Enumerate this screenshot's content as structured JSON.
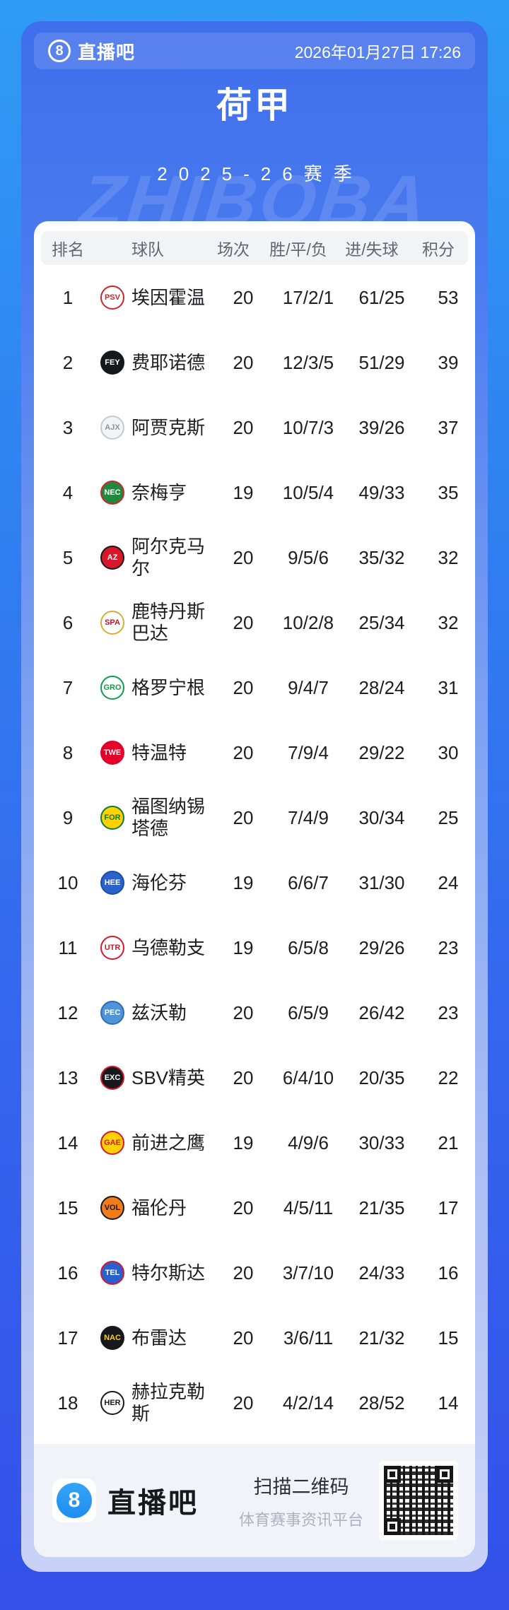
{
  "header": {
    "brand_number": "8",
    "brand_name": "直播吧",
    "datetime": "2026年01月27日 17:26"
  },
  "title": "荷甲",
  "season": "2025-26赛季",
  "watermark": "ZHIBOBA",
  "table": {
    "columns": [
      "排名",
      "球队",
      "场次",
      "胜/平/负",
      "进/失球",
      "积分"
    ],
    "rows": [
      {
        "rank": "1",
        "team": "埃因霍温",
        "played": "20",
        "record": "17/2/1",
        "goals": "61/25",
        "points": "53",
        "logo": {
          "initials": "PSV",
          "bg": "#ffffff",
          "fg": "#d2232a",
          "border": "#d2232a"
        }
      },
      {
        "rank": "2",
        "team": "费耶诺德",
        "played": "20",
        "record": "12/3/5",
        "goals": "51/29",
        "points": "39",
        "logo": {
          "initials": "FEY",
          "bg": "#16181d",
          "fg": "#ffffff",
          "border": "#16181d"
        }
      },
      {
        "rank": "3",
        "team": "阿贾克斯",
        "played": "20",
        "record": "10/7/3",
        "goals": "39/26",
        "points": "37",
        "logo": {
          "initials": "AJX",
          "bg": "#f2f3f5",
          "fg": "#8d939e",
          "border": "#c4c9d2"
        }
      },
      {
        "rank": "4",
        "team": "奈梅亨",
        "played": "19",
        "record": "10/5/4",
        "goals": "49/33",
        "points": "35",
        "logo": {
          "initials": "NEC",
          "bg": "#1f8a3d",
          "fg": "#ffffff",
          "border": "#d2232a"
        }
      },
      {
        "rank": "5",
        "team": "阿尔克马尔",
        "played": "20",
        "record": "9/5/6",
        "goals": "35/32",
        "points": "32",
        "logo": {
          "initials": "AZ",
          "bg": "#d7182a",
          "fg": "#ffffff",
          "border": "#16181d"
        }
      },
      {
        "rank": "6",
        "team": "鹿特丹斯巴达",
        "played": "20",
        "record": "10/2/8",
        "goals": "25/34",
        "points": "32",
        "logo": {
          "initials": "SPA",
          "bg": "#ffffff",
          "fg": "#c8102e",
          "border": "#d4af37"
        }
      },
      {
        "rank": "7",
        "team": "格罗宁根",
        "played": "20",
        "record": "9/4/7",
        "goals": "28/24",
        "points": "31",
        "logo": {
          "initials": "GRO",
          "bg": "#ffffff",
          "fg": "#0f9d4a",
          "border": "#0f9d4a"
        }
      },
      {
        "rank": "8",
        "team": "特温特",
        "played": "20",
        "record": "7/9/4",
        "goals": "29/22",
        "points": "30",
        "logo": {
          "initials": "TWE",
          "bg": "#e4002b",
          "fg": "#ffffff",
          "border": "#e4002b"
        }
      },
      {
        "rank": "9",
        "team": "福图纳锡塔德",
        "played": "20",
        "record": "7/4/9",
        "goals": "30/34",
        "points": "25",
        "logo": {
          "initials": "FOR",
          "bg": "#ffd100",
          "fg": "#0f7a38",
          "border": "#0f7a38"
        }
      },
      {
        "rank": "10",
        "team": "海伦芬",
        "played": "19",
        "record": "6/6/7",
        "goals": "31/30",
        "points": "24",
        "logo": {
          "initials": "HEE",
          "bg": "#2b62c9",
          "fg": "#ffffff",
          "border": "#1c4da8"
        }
      },
      {
        "rank": "11",
        "team": "乌德勒支",
        "played": "19",
        "record": "6/5/8",
        "goals": "29/26",
        "points": "23",
        "logo": {
          "initials": "UTR",
          "bg": "#ffffff",
          "fg": "#d7182a",
          "border": "#d7182a"
        }
      },
      {
        "rank": "12",
        "team": "兹沃勒",
        "played": "20",
        "record": "6/5/9",
        "goals": "26/42",
        "points": "23",
        "logo": {
          "initials": "PEC",
          "bg": "#4f93d8",
          "fg": "#ffffff",
          "border": "#2e6db4"
        }
      },
      {
        "rank": "13",
        "team": "SBV精英",
        "played": "20",
        "record": "6/4/10",
        "goals": "20/35",
        "points": "22",
        "logo": {
          "initials": "EXC",
          "bg": "#16181d",
          "fg": "#ffffff",
          "border": "#d7182a"
        }
      },
      {
        "rank": "14",
        "team": "前进之鹰",
        "played": "19",
        "record": "4/9/6",
        "goals": "30/33",
        "points": "21",
        "logo": {
          "initials": "GAE",
          "bg": "#ffd100",
          "fg": "#d7182a",
          "border": "#d7182a"
        }
      },
      {
        "rank": "15",
        "team": "福伦丹",
        "played": "20",
        "record": "4/5/11",
        "goals": "21/35",
        "points": "17",
        "logo": {
          "initials": "VOL",
          "bg": "#f07d1a",
          "fg": "#16181d",
          "border": "#16181d"
        }
      },
      {
        "rank": "16",
        "team": "特尔斯达",
        "played": "20",
        "record": "3/7/10",
        "goals": "24/33",
        "points": "16",
        "logo": {
          "initials": "TEL",
          "bg": "#2a5fd0",
          "fg": "#ffffff",
          "border": "#d7182a"
        }
      },
      {
        "rank": "17",
        "team": "布雷达",
        "played": "20",
        "record": "3/6/11",
        "goals": "21/32",
        "points": "15",
        "logo": {
          "initials": "NAC",
          "bg": "#16181d",
          "fg": "#ffd100",
          "border": "#16181d"
        }
      },
      {
        "rank": "18",
        "team": "赫拉克勒斯",
        "played": "20",
        "record": "4/2/14",
        "goals": "28/52",
        "points": "14",
        "logo": {
          "initials": "HER",
          "bg": "#ffffff",
          "fg": "#16181d",
          "border": "#16181d"
        }
      }
    ]
  },
  "footer": {
    "brand_number": "8",
    "brand_name": "直播吧",
    "scan_text": "扫描二维码",
    "platform_text": "体育赛事资讯平台"
  },
  "colors": {
    "page_bg_top": "#2f9cf5",
    "page_bg_bottom": "#3350e8",
    "card_top": "#3f6eec",
    "card_bottom": "#c9d2f6",
    "panel_bg": "#ffffff",
    "table_header_bg": "#f2f3f7",
    "footer_bg": "#f2f3f8",
    "text_dark": "#1d1d1f",
    "text_gray": "#61676f",
    "text_white": "#ffffff"
  }
}
